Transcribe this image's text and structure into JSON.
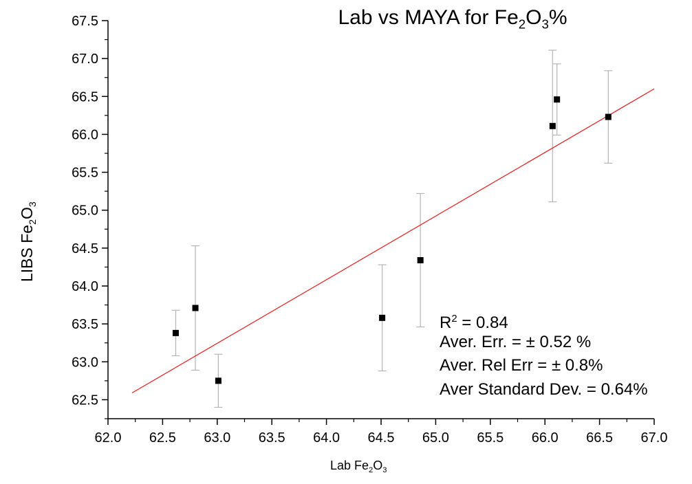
{
  "chart_data": {
    "type": "scatter",
    "title": {
      "main": "Lab vs MAYA for Fe",
      "sub1": "2",
      "mid": "O",
      "sub2": "3",
      "tail": "%"
    },
    "xlabel": {
      "main": "Lab Fe",
      "sub1": "2",
      "mid": "O",
      "sub2": "3"
    },
    "ylabel": {
      "main": "LIBS Fe",
      "sub1": "2",
      "mid": "O",
      "sub2": "3"
    },
    "xlim": [
      62.0,
      67.0
    ],
    "ylim": [
      62.25,
      67.5
    ],
    "x_ticks": [
      "62.0",
      "62.5",
      "63.0",
      "63.5",
      "64.0",
      "64.5",
      "65.0",
      "65.5",
      "66.0",
      "66.5",
      "67.0"
    ],
    "y_ticks": [
      "62.5",
      "63.0",
      "63.5",
      "64.0",
      "64.5",
      "65.0",
      "65.5",
      "66.0",
      "66.5",
      "67.0",
      "67.5"
    ],
    "grid": false,
    "points": [
      {
        "x": 62.62,
        "y": 63.38,
        "err_low": 63.08,
        "err_high": 63.68
      },
      {
        "x": 62.8,
        "y": 63.71,
        "err_low": 62.89,
        "err_high": 64.53
      },
      {
        "x": 63.01,
        "y": 62.75,
        "err_low": 62.4,
        "err_high": 63.1
      },
      {
        "x": 64.51,
        "y": 63.58,
        "err_low": 62.88,
        "err_high": 64.28
      },
      {
        "x": 64.86,
        "y": 64.34,
        "err_low": 63.46,
        "err_high": 65.22
      },
      {
        "x": 66.07,
        "y": 66.11,
        "err_low": 65.11,
        "err_high": 67.11
      },
      {
        "x": 66.11,
        "y": 66.46,
        "err_low": 65.99,
        "err_high": 66.93
      },
      {
        "x": 66.58,
        "y": 66.23,
        "err_low": 65.62,
        "err_high": 66.84
      }
    ],
    "fit_line": {
      "x": [
        62.22,
        67.0
      ],
      "y": [
        62.59,
        66.6
      ],
      "color": "#e31a1c"
    },
    "marker_color": "#000000",
    "errorbar_color": "#b4b4b4",
    "annotations": {
      "r2_main": "R",
      "r2_sup": "2",
      "r2_value": " = 0.84",
      "line2": "Aver. Err. = ± 0.52 %",
      "line3": "Aver. Rel Err = ± 0.8%",
      "line4": "Aver Standard Dev. = 0.64%"
    }
  }
}
